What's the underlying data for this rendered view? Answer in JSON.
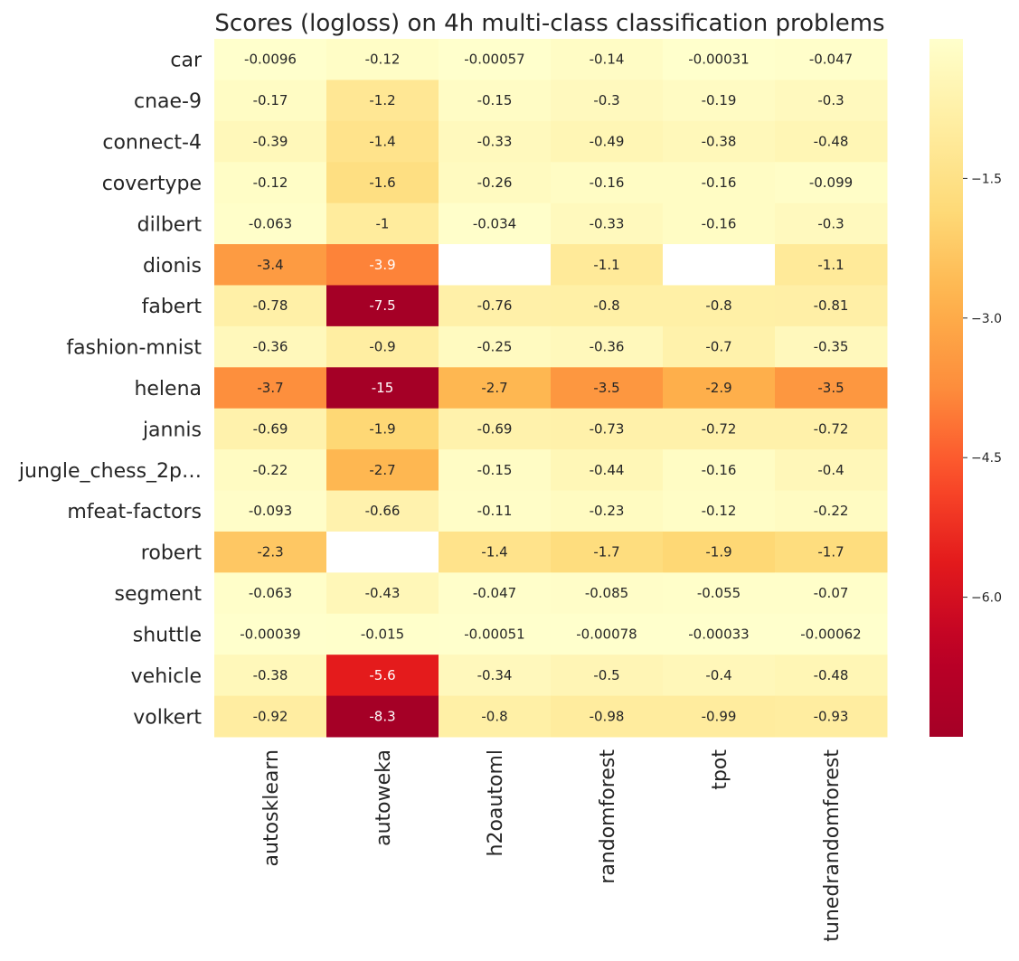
{
  "chart_data": {
    "type": "heatmap",
    "title": "Scores (logloss) on 4h multi-class classification problems",
    "rows": [
      "car",
      "cnae-9",
      "connect-4",
      "covertype",
      "dilbert",
      "dionis",
      "fabert",
      "fashion-mnist",
      "helena",
      "jannis",
      "jungle_chess_2p…",
      "mfeat-factors",
      "robert",
      "segment",
      "shuttle",
      "vehicle",
      "volkert"
    ],
    "columns": [
      "autosklearn",
      "autoweka",
      "h2oautoml",
      "randomforest",
      "tpot",
      "tunedrandomforest"
    ],
    "values": [
      [
        -0.0096,
        -0.12,
        -0.00057,
        -0.14,
        -0.00031,
        -0.047
      ],
      [
        -0.17,
        -1.2,
        -0.15,
        -0.3,
        -0.19,
        -0.3
      ],
      [
        -0.39,
        -1.4,
        -0.33,
        -0.49,
        -0.38,
        -0.48
      ],
      [
        -0.12,
        -1.6,
        -0.26,
        -0.16,
        -0.16,
        -0.099
      ],
      [
        -0.063,
        -1,
        -0.034,
        -0.33,
        -0.16,
        -0.3
      ],
      [
        -3.4,
        -3.9,
        null,
        -1.1,
        null,
        -1.1
      ],
      [
        -0.78,
        -7.5,
        -0.76,
        -0.8,
        -0.8,
        -0.81
      ],
      [
        -0.36,
        -0.9,
        -0.25,
        -0.36,
        -0.7,
        -0.35
      ],
      [
        -3.7,
        -15,
        -2.7,
        -3.5,
        -2.9,
        -3.5
      ],
      [
        -0.69,
        -1.9,
        -0.69,
        -0.73,
        -0.72,
        -0.72
      ],
      [
        -0.22,
        -2.7,
        -0.15,
        -0.44,
        -0.16,
        -0.4
      ],
      [
        -0.093,
        -0.66,
        -0.11,
        -0.23,
        -0.12,
        -0.22
      ],
      [
        -2.3,
        null,
        -1.4,
        -1.7,
        -1.9,
        -1.7
      ],
      [
        -0.063,
        -0.43,
        -0.047,
        -0.085,
        -0.055,
        -0.07
      ],
      [
        -0.00039,
        -0.015,
        -0.00051,
        -0.00078,
        -0.00033,
        -0.00062
      ],
      [
        -0.38,
        -5.6,
        -0.34,
        -0.5,
        -0.4,
        -0.48
      ],
      [
        -0.92,
        -8.3,
        -0.8,
        -0.98,
        -0.99,
        -0.93
      ]
    ],
    "colorbar": {
      "colormap": "YlOrRd_r",
      "vmin": -7.5,
      "vmax": 0,
      "ticks": [
        -1.5,
        -3.0,
        -4.5,
        -6.0
      ],
      "tick_labels": [
        "−1.5",
        "−3.0",
        "−4.5",
        "−6.0"
      ]
    },
    "colors": {
      "high": "#ffffcc",
      "low": "#a50026",
      "text_dark": "#262626",
      "text_light": "#ffffff"
    }
  }
}
